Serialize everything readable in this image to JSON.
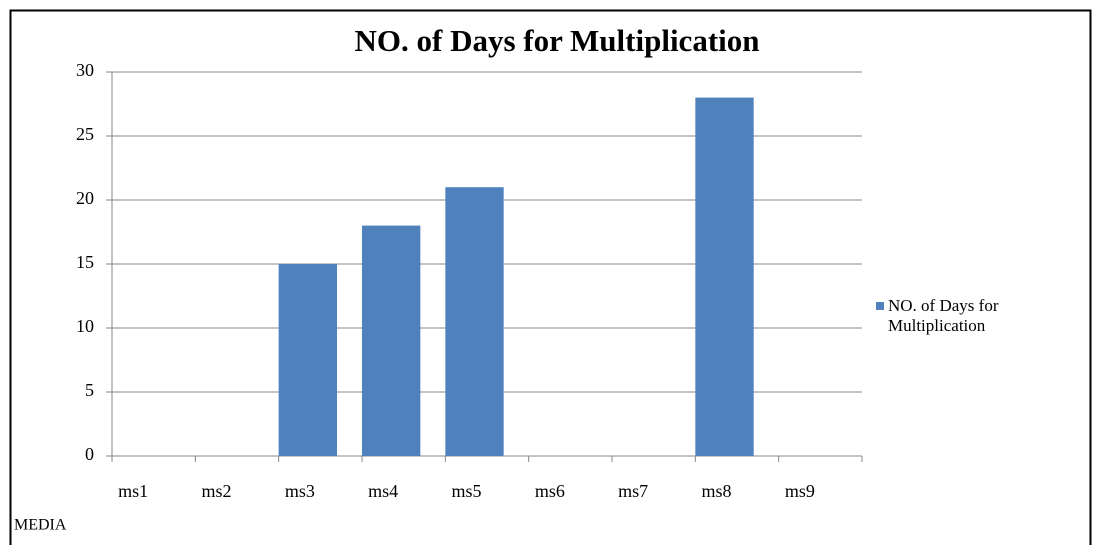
{
  "chart_data": {
    "type": "bar",
    "title": "NO. of Days for Multiplication",
    "x_label": "MEDIA",
    "categories": [
      "ms1",
      "ms2",
      "ms3",
      "ms4",
      "ms5",
      "ms6",
      "ms7",
      "ms8",
      "ms9"
    ],
    "series": [
      {
        "name": "NO. of Days for Multiplication",
        "color": "#4f81bd",
        "values": [
          0,
          0,
          15,
          18,
          21,
          0,
          0,
          28,
          0
        ]
      }
    ],
    "ylim": [
      0,
      30
    ],
    "yticks": [
      0,
      5,
      10,
      15,
      20,
      25,
      30
    ],
    "grid": true,
    "legend": "right"
  }
}
